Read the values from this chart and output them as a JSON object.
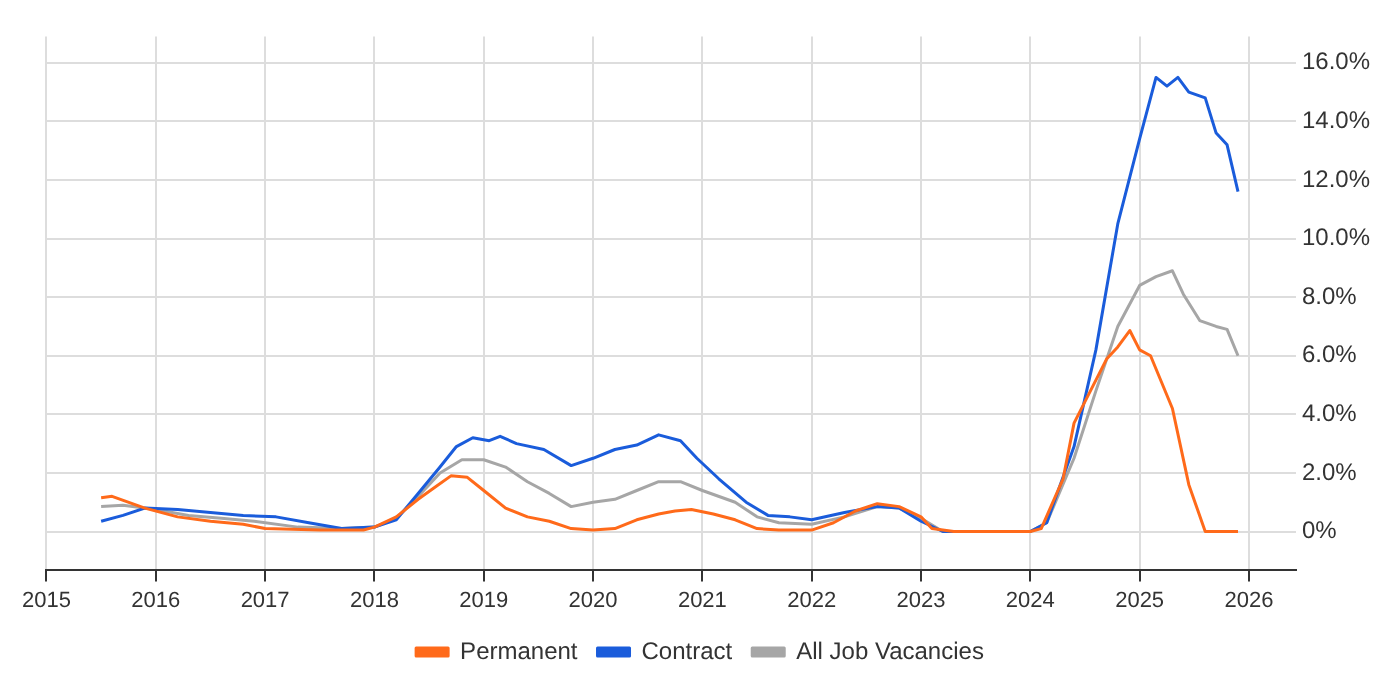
{
  "chart_data": {
    "type": "line",
    "x": [
      2015.5,
      2015.6,
      2015.9,
      2016.2,
      2016.5,
      2016.8,
      2017.0,
      2017.5,
      2017.9,
      2018.0,
      2018.2,
      2018.4,
      2018.55,
      2018.7,
      2018.85,
      2019.0,
      2019.2,
      2019.4,
      2019.6,
      2019.8,
      2020.0,
      2020.2,
      2020.4,
      2020.6,
      2020.75,
      2020.9,
      2021.1,
      2021.3,
      2021.5,
      2021.7,
      2022.0,
      2022.2,
      2022.4,
      2022.6,
      2022.8,
      2023.0,
      2023.1,
      2023.3,
      2024.0,
      2024.1,
      2024.3,
      2024.4,
      2024.55,
      2024.7,
      2024.8,
      2024.91,
      2025.0,
      2025.1,
      2025.3,
      2025.45,
      2025.6,
      2025.9
    ],
    "series": [
      {
        "name": "Permanent",
        "color": "#ff6a1a",
        "values": [
          1.15,
          1.2,
          0.8,
          0.5,
          0.35,
          0.25,
          0.1,
          0.05,
          0.05,
          0.15,
          0.5,
          1.1,
          1.5,
          1.9,
          1.85,
          1.4,
          0.8,
          0.5,
          0.35,
          0.1,
          0.05,
          0.1,
          0.4,
          0.6,
          0.7,
          0.75,
          0.6,
          0.4,
          0.1,
          0.05,
          0.05,
          0.3,
          0.7,
          0.95,
          0.85,
          0.5,
          0.1,
          0,
          0,
          0.1,
          1.8,
          3.7,
          4.8,
          5.9,
          6.3,
          6.86,
          6.2,
          6.0,
          4.2,
          1.6,
          0,
          0
        ]
      },
      {
        "name": "Contract",
        "color": "#1a5cdb",
        "x": [
          2015.5,
          2015.7,
          2015.9,
          2016.2,
          2016.5,
          2016.8,
          2017.1,
          2017.4,
          2017.7,
          2018.0,
          2018.2,
          2018.4,
          2018.6,
          2018.75,
          2018.9,
          2019.05,
          2019.15,
          2019.3,
          2019.55,
          2019.8,
          2020.0,
          2020.2,
          2020.4,
          2020.6,
          2020.8,
          2020.95,
          2021.15,
          2021.4,
          2021.6,
          2021.8,
          2022.0,
          2022.3,
          2022.6,
          2022.8,
          2023.0,
          2023.2,
          2024.0,
          2024.15,
          2024.4,
          2024.6,
          2024.8,
          2025.0,
          2025.15,
          2025.25,
          2025.35,
          2025.45,
          2025.6,
          2025.7,
          2025.8,
          2025.9
        ],
        "values": [
          0.35,
          0.55,
          0.8,
          0.75,
          0.65,
          0.55,
          0.5,
          0.3,
          0.1,
          0.15,
          0.4,
          1.3,
          2.2,
          2.9,
          3.2,
          3.1,
          3.25,
          3.0,
          2.8,
          2.25,
          2.5,
          2.8,
          2.95,
          3.3,
          3.1,
          2.5,
          1.8,
          1.0,
          0.55,
          0.5,
          0.4,
          0.65,
          0.85,
          0.8,
          0.35,
          0,
          0,
          0.3,
          2.9,
          6.2,
          10.5,
          13.4,
          15.5,
          15.2,
          15.5,
          15.0,
          14.8,
          13.6,
          13.2,
          11.6
        ]
      },
      {
        "name": "All Job Vacancies",
        "color": "#a6a6a6",
        "x": [
          2015.5,
          2015.7,
          2016.0,
          2016.3,
          2016.6,
          2016.9,
          2017.3,
          2017.7,
          2018.0,
          2018.2,
          2018.4,
          2018.6,
          2018.8,
          2019.0,
          2019.2,
          2019.4,
          2019.6,
          2019.8,
          2020.0,
          2020.2,
          2020.4,
          2020.6,
          2020.8,
          2021.0,
          2021.3,
          2021.5,
          2021.7,
          2022.0,
          2022.3,
          2022.6,
          2022.8,
          2023.0,
          2023.2,
          2024.0,
          2024.15,
          2024.4,
          2024.6,
          2024.8,
          2025.0,
          2025.15,
          2025.3,
          2025.4,
          2025.55,
          2025.7,
          2025.8,
          2025.9
        ],
        "values": [
          0.85,
          0.9,
          0.75,
          0.55,
          0.45,
          0.35,
          0.15,
          0.1,
          0.15,
          0.45,
          1.2,
          2.0,
          2.45,
          2.45,
          2.2,
          1.7,
          1.3,
          0.85,
          1.0,
          1.1,
          1.4,
          1.7,
          1.7,
          1.4,
          1.0,
          0.5,
          0.3,
          0.25,
          0.5,
          0.85,
          0.8,
          0.45,
          0,
          0,
          0.3,
          2.5,
          4.8,
          7.0,
          8.4,
          8.7,
          8.9,
          8.1,
          7.2,
          7.0,
          6.9,
          6.0
        ]
      }
    ],
    "xlim": [
      2015,
      2026.43
    ],
    "xticks": [
      2015,
      2016,
      2017,
      2018,
      2019,
      2020,
      2021,
      2022,
      2023,
      2024,
      2025,
      2026
    ],
    "ylim": [
      -1.3,
      16.9
    ],
    "yticks": [
      {
        "value": 0,
        "label": "0%"
      },
      {
        "value": 2,
        "label": "2.0%"
      },
      {
        "value": 4,
        "label": "4.0%"
      },
      {
        "value": 6,
        "label": "6.0%"
      },
      {
        "value": 8,
        "label": "8.0%"
      },
      {
        "value": 10,
        "label": "10.0%"
      },
      {
        "value": 12,
        "label": "12.0%"
      },
      {
        "value": 14,
        "label": "14.0%"
      },
      {
        "value": 16,
        "label": "16.0%"
      }
    ],
    "grid": true,
    "legend": "bottom",
    "marker": "none",
    "line_style": "solid"
  }
}
